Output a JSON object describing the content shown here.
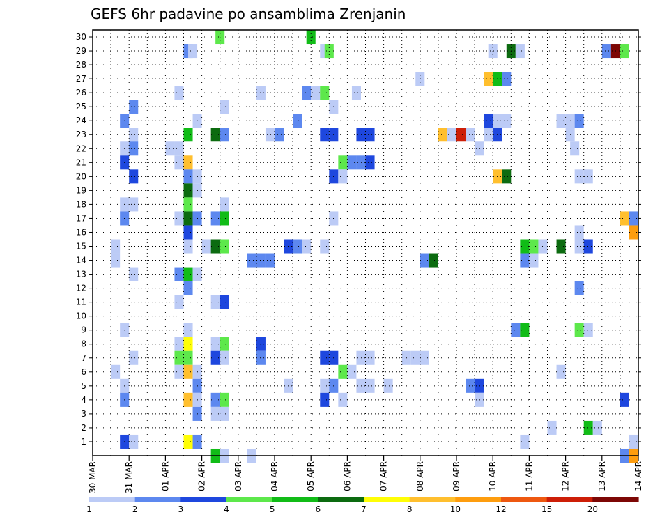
{
  "chart_data": {
    "type": "heatmap",
    "title": "GEFS 6hr padavine po ansamblima Zrenjanin",
    "xlabel": "",
    "ylabel": "",
    "x_tick_labels": [
      "30 MAR",
      "31 MAR",
      "01 APR",
      "02 APR",
      "03 APR",
      "04 APR",
      "05 APR",
      "06 APR",
      "07 APR",
      "08 APR",
      "09 APR",
      "10 APR",
      "11 APR",
      "12 APR",
      "13 APR",
      "14 APR"
    ],
    "y_tick_labels": [
      "1",
      "2",
      "3",
      "4",
      "5",
      "6",
      "7",
      "8",
      "9",
      "10",
      "11",
      "12",
      "13",
      "14",
      "15",
      "16",
      "17",
      "18",
      "19",
      "20",
      "21",
      "22",
      "23",
      "24",
      "25",
      "26",
      "27",
      "28",
      "29",
      "30"
    ],
    "xlim_steps": [
      0,
      60
    ],
    "ylim_members": [
      0,
      30
    ],
    "grid": true,
    "colorbar": {
      "bounds": [
        "1",
        "2",
        "3",
        "4",
        "5",
        "6",
        "7",
        "8",
        "10",
        "12",
        "15",
        "20"
      ],
      "colors": [
        "#bccbf6",
        "#5d88ef",
        "#1e47de",
        "#5de84b",
        "#11bc17",
        "#0c6b10",
        "#fffe06",
        "#ffbf2e",
        "#fe9d0e",
        "#ee5810",
        "#cd1e07",
        "#7d0705"
      ],
      "placement": "bottom"
    },
    "cells": [
      [
        14.0,
        30,
        3
      ],
      [
        24.0,
        30,
        4
      ],
      [
        10.5,
        29,
        1
      ],
      [
        11.0,
        29,
        0
      ],
      [
        25.5,
        29,
        0
      ],
      [
        26.0,
        29,
        3
      ],
      [
        44.0,
        29,
        0
      ],
      [
        46.0,
        29,
        5
      ],
      [
        47.0,
        29,
        0
      ],
      [
        56.5,
        29,
        1
      ],
      [
        57.5,
        29,
        11
      ],
      [
        58.5,
        29,
        3
      ],
      [
        36.0,
        27,
        0
      ],
      [
        43.5,
        27,
        7
      ],
      [
        44.5,
        27,
        4
      ],
      [
        45.5,
        27,
        1
      ],
      [
        18.5,
        26,
        0
      ],
      [
        24.5,
        26,
        0
      ],
      [
        29.0,
        26,
        0
      ],
      [
        9.5,
        26,
        0
      ],
      [
        23.5,
        26,
        1
      ],
      [
        24.5,
        26,
        0
      ],
      [
        25.5,
        26,
        3
      ],
      [
        4.5,
        25,
        1
      ],
      [
        14.5,
        25,
        0
      ],
      [
        26.5,
        25,
        0
      ],
      [
        3.5,
        24,
        1
      ],
      [
        11.5,
        24,
        0
      ],
      [
        22.5,
        24,
        1
      ],
      [
        43.5,
        24,
        2
      ],
      [
        44.5,
        24,
        0
      ],
      [
        45.5,
        24,
        0
      ],
      [
        51.5,
        24,
        0
      ],
      [
        52.5,
        24,
        0
      ],
      [
        53.5,
        24,
        1
      ],
      [
        4.5,
        23,
        0
      ],
      [
        10.5,
        23,
        4
      ],
      [
        13.5,
        23,
        5
      ],
      [
        14.5,
        23,
        1
      ],
      [
        19.5,
        23,
        0
      ],
      [
        20.5,
        23,
        1
      ],
      [
        25.5,
        23,
        2
      ],
      [
        26.5,
        23,
        2
      ],
      [
        29.5,
        23,
        2
      ],
      [
        30.5,
        23,
        2
      ],
      [
        38.5,
        23,
        7
      ],
      [
        39.5,
        23,
        0
      ],
      [
        40.5,
        23,
        10
      ],
      [
        41.5,
        23,
        0
      ],
      [
        43.5,
        23,
        0
      ],
      [
        44.5,
        23,
        2
      ],
      [
        52.5,
        23,
        0
      ],
      [
        3.5,
        22,
        0
      ],
      [
        4.5,
        22,
        1
      ],
      [
        8.5,
        22,
        0
      ],
      [
        9.5,
        22,
        0
      ],
      [
        42.5,
        22,
        0
      ],
      [
        53.0,
        22,
        0
      ],
      [
        3.5,
        21,
        2
      ],
      [
        9.5,
        21,
        0
      ],
      [
        10.5,
        21,
        7
      ],
      [
        27.5,
        21,
        3
      ],
      [
        28.5,
        21,
        1
      ],
      [
        29.5,
        21,
        1
      ],
      [
        30.5,
        21,
        2
      ],
      [
        4.5,
        20,
        2
      ],
      [
        10.5,
        20,
        1
      ],
      [
        11.5,
        20,
        0
      ],
      [
        26.5,
        20,
        2
      ],
      [
        27.5,
        20,
        0
      ],
      [
        44.5,
        20,
        7
      ],
      [
        45.5,
        20,
        5
      ],
      [
        53.5,
        20,
        0
      ],
      [
        54.5,
        20,
        0
      ],
      [
        10.5,
        19,
        5
      ],
      [
        11.5,
        19,
        0
      ],
      [
        3.5,
        18,
        0
      ],
      [
        4.5,
        18,
        0
      ],
      [
        10.5,
        18,
        3
      ],
      [
        14.5,
        18,
        0
      ],
      [
        3.5,
        17,
        1
      ],
      [
        9.5,
        17,
        0
      ],
      [
        10.5,
        17,
        5
      ],
      [
        11.5,
        17,
        1
      ],
      [
        13.5,
        17,
        1
      ],
      [
        14.5,
        17,
        4
      ],
      [
        26.5,
        17,
        0
      ],
      [
        58.5,
        17,
        7
      ],
      [
        59.5,
        17,
        1
      ],
      [
        10.5,
        16,
        2
      ],
      [
        53.5,
        16,
        0
      ],
      [
        59.5,
        16,
        8
      ],
      [
        2.5,
        15,
        0
      ],
      [
        10.5,
        15,
        0
      ],
      [
        12.5,
        15,
        0
      ],
      [
        13.5,
        15,
        5
      ],
      [
        14.5,
        15,
        3
      ],
      [
        21.5,
        15,
        2
      ],
      [
        22.5,
        15,
        1
      ],
      [
        23.5,
        15,
        0
      ],
      [
        25.5,
        15,
        0
      ],
      [
        47.5,
        15,
        4
      ],
      [
        48.5,
        15,
        3
      ],
      [
        49.5,
        15,
        0
      ],
      [
        51.5,
        15,
        5
      ],
      [
        53.5,
        15,
        0
      ],
      [
        54.5,
        15,
        2
      ],
      [
        2.5,
        14,
        0
      ],
      [
        17.5,
        14,
        1
      ],
      [
        18.5,
        14,
        1
      ],
      [
        19.5,
        14,
        1
      ],
      [
        36.5,
        14,
        1
      ],
      [
        37.5,
        14,
        5
      ],
      [
        47.5,
        14,
        1
      ],
      [
        48.5,
        14,
        0
      ],
      [
        4.5,
        13,
        0
      ],
      [
        9.5,
        13,
        1
      ],
      [
        10.5,
        13,
        4
      ],
      [
        11.5,
        13,
        0
      ],
      [
        10.5,
        12,
        1
      ],
      [
        53.5,
        12,
        1
      ],
      [
        9.5,
        11,
        0
      ],
      [
        13.5,
        11,
        0
      ],
      [
        14.5,
        11,
        2
      ],
      [
        3.5,
        9,
        0
      ],
      [
        10.5,
        9,
        0
      ],
      [
        46.5,
        9,
        1
      ],
      [
        47.5,
        9,
        4
      ],
      [
        53.5,
        9,
        3
      ],
      [
        54.5,
        9,
        0
      ],
      [
        9.5,
        8,
        0
      ],
      [
        10.5,
        8,
        6
      ],
      [
        13.5,
        8,
        0
      ],
      [
        14.5,
        8,
        3
      ],
      [
        18.5,
        8,
        2
      ],
      [
        4.5,
        7,
        0
      ],
      [
        9.5,
        7,
        3
      ],
      [
        10.5,
        7,
        3
      ],
      [
        13.5,
        7,
        2
      ],
      [
        14.5,
        7,
        0
      ],
      [
        18.5,
        7,
        1
      ],
      [
        25.5,
        7,
        2
      ],
      [
        26.5,
        7,
        2
      ],
      [
        29.5,
        7,
        0
      ],
      [
        30.5,
        7,
        0
      ],
      [
        34.5,
        7,
        0
      ],
      [
        35.5,
        7,
        0
      ],
      [
        36.5,
        7,
        0
      ],
      [
        2.5,
        6,
        0
      ],
      [
        9.5,
        6,
        0
      ],
      [
        10.5,
        6,
        7
      ],
      [
        11.5,
        6,
        0
      ],
      [
        27.5,
        6,
        3
      ],
      [
        28.5,
        6,
        0
      ],
      [
        51.5,
        6,
        0
      ],
      [
        3.5,
        5,
        0
      ],
      [
        11.5,
        5,
        1
      ],
      [
        21.5,
        5,
        0
      ],
      [
        25.5,
        5,
        0
      ],
      [
        26.5,
        5,
        1
      ],
      [
        29.5,
        5,
        0
      ],
      [
        30.5,
        5,
        0
      ],
      [
        32.5,
        5,
        0
      ],
      [
        41.5,
        5,
        1
      ],
      [
        42.5,
        5,
        2
      ],
      [
        3.5,
        4,
        1
      ],
      [
        10.5,
        4,
        7
      ],
      [
        11.5,
        4,
        0
      ],
      [
        13.5,
        4,
        1
      ],
      [
        14.5,
        4,
        3
      ],
      [
        25.5,
        4,
        2
      ],
      [
        27.5,
        4,
        0
      ],
      [
        42.5,
        4,
        0
      ],
      [
        58.5,
        4,
        2
      ],
      [
        11.5,
        3,
        1
      ],
      [
        13.5,
        3,
        0
      ],
      [
        14.5,
        3,
        0
      ],
      [
        50.5,
        2,
        0
      ],
      [
        54.5,
        2,
        4
      ],
      [
        55.5,
        2,
        0
      ],
      [
        3.5,
        1,
        2
      ],
      [
        4.5,
        1,
        0
      ],
      [
        10.5,
        1,
        6
      ],
      [
        11.5,
        1,
        1
      ],
      [
        47.5,
        1,
        0
      ],
      [
        59.5,
        1,
        0
      ],
      [
        13.5,
        0,
        4
      ],
      [
        14.5,
        0,
        0
      ],
      [
        17.5,
        0,
        0
      ],
      [
        58.5,
        0,
        1
      ],
      [
        59.5,
        0,
        8
      ]
    ]
  }
}
